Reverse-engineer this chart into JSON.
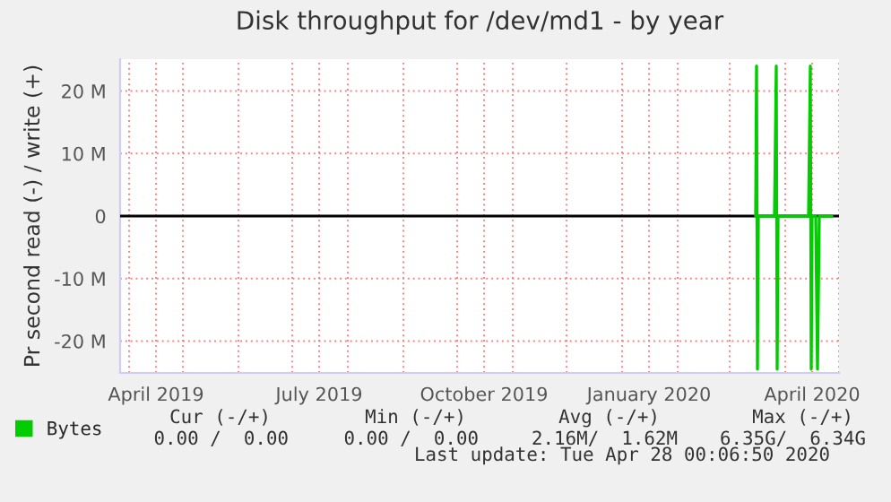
{
  "chart_data": {
    "type": "line",
    "title": "Disk throughput for /dev/md1 - by year",
    "ylabel": "Pr second read (-) / write (+)",
    "xlim": [
      "2019-03-27",
      "2020-05-01"
    ],
    "xticks": [
      {
        "value": "2019-04-01",
        "label": null
      },
      {
        "value": "2019-04-16",
        "label": "April 2019"
      },
      {
        "value": "2019-05-01",
        "label": null
      },
      {
        "value": "2019-06-01",
        "label": null
      },
      {
        "value": "2019-07-01",
        "label": null
      },
      {
        "value": "2019-07-16",
        "label": "July 2019"
      },
      {
        "value": "2019-08-01",
        "label": null
      },
      {
        "value": "2019-09-01",
        "label": null
      },
      {
        "value": "2019-10-01",
        "label": null
      },
      {
        "value": "2019-10-16",
        "label": "October 2019"
      },
      {
        "value": "2019-11-01",
        "label": null
      },
      {
        "value": "2019-12-01",
        "label": null
      },
      {
        "value": "2020-01-01",
        "label": null
      },
      {
        "value": "2020-01-16",
        "label": "January 2020"
      },
      {
        "value": "2020-02-01",
        "label": null
      },
      {
        "value": "2020-03-01",
        "label": null
      },
      {
        "value": "2020-04-01",
        "label": null
      },
      {
        "value": "2020-04-16",
        "label": "April 2020"
      },
      {
        "value": "2020-05-01",
        "label": null
      }
    ],
    "ylim": [
      -25100000,
      25100000
    ],
    "yticks": [
      {
        "value": -20000000,
        "label": "-20 M"
      },
      {
        "value": -10000000,
        "label": "-10 M"
      },
      0,
      {
        "value": 10000000,
        "label": "10 M"
      },
      {
        "value": 20000000,
        "label": "20 M"
      }
    ],
    "grid": true,
    "legend": "bottom left",
    "marker": "none",
    "line_style": "solid",
    "series": [
      {
        "name": "Bytes",
        "color": "#00cc00",
        "x": [
          "2020-03-15T12:00",
          "2020-03-16",
          "2020-03-16T12:00",
          "2020-03-17",
          "2020-03-26",
          "2020-03-27",
          "2020-03-27T12:00",
          "2020-03-28",
          "2020-04-14",
          "2020-04-15",
          "2020-04-15T12:00",
          "2020-04-16",
          "2020-04-18",
          "2020-04-19",
          "2020-04-20",
          "2020-04-27"
        ],
        "values": [
          0,
          24000000,
          -24500000,
          0,
          0,
          24000000,
          -24500000,
          0,
          0,
          24000000,
          -24500000,
          0,
          0,
          -24500000,
          0,
          0
        ]
      }
    ],
    "ref_lines": [
      {
        "axis": "y",
        "value": 0,
        "color": "#000000",
        "line_style": "solid"
      }
    ],
    "annotations": [
      "Cur (-/+)",
      "Min (-/+)",
      "Avg (-/+)",
      "Max (-/+)",
      "0.00 /  0.00",
      "0.00 /  0.00",
      "2.16M/  1.62M",
      "6.35G/  6.34G",
      "Last update: Tue Apr 28 00:06:50 2020"
    ]
  }
}
